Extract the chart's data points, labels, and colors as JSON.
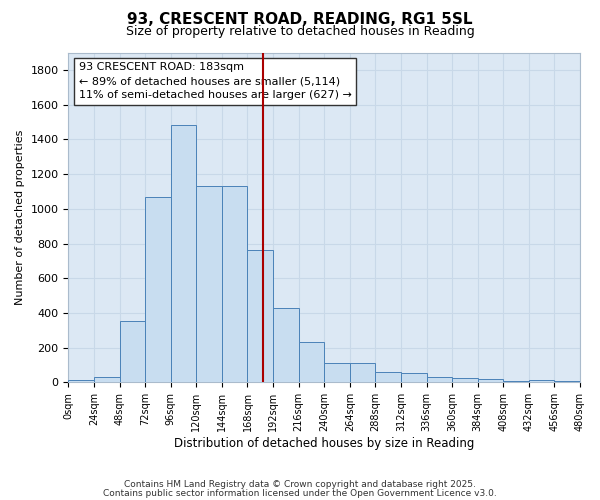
{
  "title": "93, CRESCENT ROAD, READING, RG1 5SL",
  "subtitle": "Size of property relative to detached houses in Reading",
  "xlabel": "Distribution of detached houses by size in Reading",
  "ylabel": "Number of detached properties",
  "bin_edges": [
    0,
    24,
    48,
    72,
    96,
    120,
    144,
    168,
    192,
    216,
    240,
    264,
    288,
    312,
    336,
    360,
    384,
    408,
    432,
    456,
    480
  ],
  "bar_heights": [
    15,
    30,
    355,
    1070,
    1480,
    1130,
    1130,
    760,
    430,
    235,
    115,
    115,
    60,
    55,
    30,
    25,
    20,
    10,
    12,
    8
  ],
  "bar_color": "#c8ddf0",
  "bar_edge_color": "#4a82b8",
  "vline_x": 183,
  "vline_color": "#aa0000",
  "ylim": [
    0,
    1900
  ],
  "yticks": [
    0,
    200,
    400,
    600,
    800,
    1000,
    1200,
    1400,
    1600,
    1800
  ],
  "xtick_labels": [
    "0sqm",
    "24sqm",
    "48sqm",
    "72sqm",
    "96sqm",
    "120sqm",
    "144sqm",
    "168sqm",
    "192sqm",
    "216sqm",
    "240sqm",
    "264sqm",
    "288sqm",
    "312sqm",
    "336sqm",
    "360sqm",
    "384sqm",
    "408sqm",
    "432sqm",
    "456sqm",
    "480sqm"
  ],
  "ann_line1": "93 CRESCENT ROAD: 183sqm",
  "ann_line2": "← 89% of detached houses are smaller (5,114)",
  "ann_line3": "11% of semi-detached houses are larger (627) →",
  "grid_color": "#c8d8e8",
  "bg_color": "#dce8f4",
  "footer_line1": "Contains HM Land Registry data © Crown copyright and database right 2025.",
  "footer_line2": "Contains public sector information licensed under the Open Government Licence v3.0."
}
